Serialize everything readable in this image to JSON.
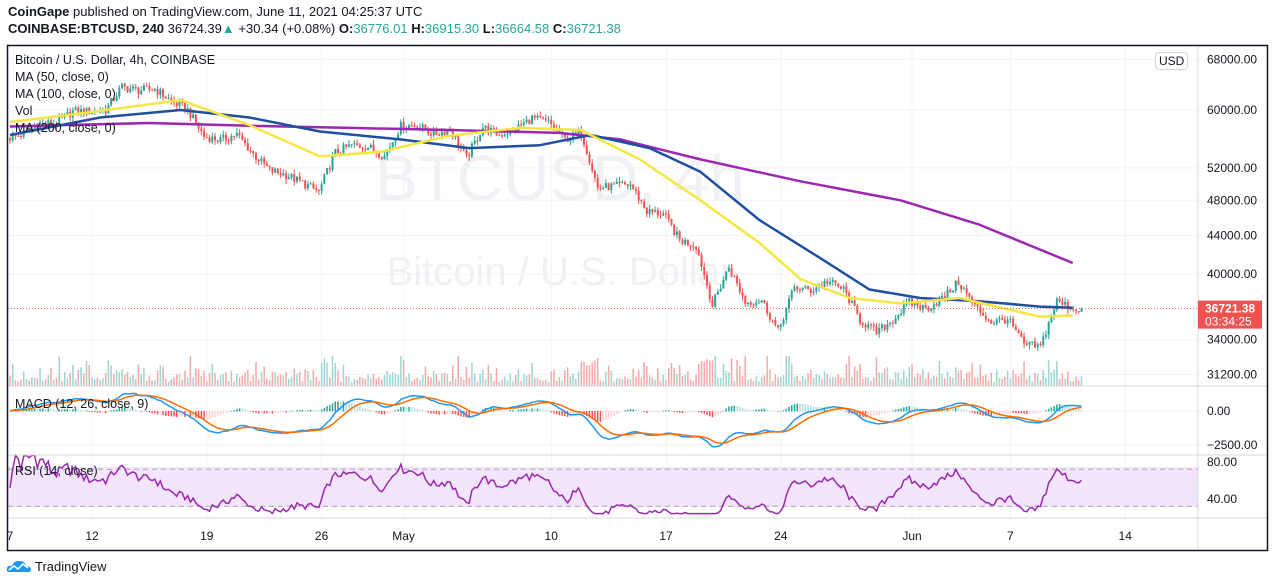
{
  "header": {
    "publisher": "CoinGape",
    "published_text": "published on TradingView.com, June 11, 2021 04:25:37 UTC",
    "symbol": "COINBASE:BTCUSD, 240",
    "last": "36724.39",
    "change": "+30.34 (+0.08%)",
    "o_label": "O:",
    "o": "36776.01",
    "h_label": "H:",
    "h": "36915.30",
    "l_label": "L:",
    "l": "36664.58",
    "c_label": "C:",
    "c": "36721.38"
  },
  "legend": {
    "title": "Bitcoin / U.S. Dollar, 4h, COINBASE",
    "ma50": "MA (50, close, 0)",
    "ma100": "MA (100, close, 0)",
    "vol": "Vol",
    "ma200": "MA (200, close, 0)",
    "macd": "MACD (12, 26, close, 9)",
    "rsi": "RSI (14, close)"
  },
  "watermark": {
    "symbol": "BTCUSD, 4h",
    "name": "Bitcoin / U.S. Dollar"
  },
  "currency_badge": "USD",
  "current_price": {
    "price": "36721.38",
    "countdown": "03:34:25"
  },
  "footer": {
    "brand": "TradingView"
  },
  "colors": {
    "up": "#26a69a",
    "down": "#ef5350",
    "ma50": "#f5e642",
    "ma100": "#1e4fa0",
    "ma200": "#9c27b0",
    "macd": "#2196f3",
    "signal": "#ff6d00",
    "rsi": "#9c27b0"
  },
  "chart_data": {
    "type": "candlestick",
    "interval": "4h",
    "start_date": "2021-04-07",
    "daily_close": [
      56500,
      58000,
      58100,
      59800,
      59800,
      60000,
      63500,
      63000,
      63200,
      61300,
      60000,
      56200,
      55700,
      56500,
      53800,
      51700,
      51100,
      50100,
      49000,
      54000,
      55000,
      54800,
      53500,
      57700,
      57800,
      56500,
      57200,
      53200,
      57500,
      56400,
      57300,
      58800,
      58200,
      55800,
      56700,
      49500,
      49700,
      49900,
      46700,
      46400,
      43500,
      42900,
      37000,
      40700,
      37300,
      37500,
      34700,
      38700,
      38400,
      39300,
      38500,
      35700,
      34600,
      35700,
      37300,
      36700,
      37600,
      39200,
      36900,
      35500,
      35800,
      33600,
      33400,
      37400,
      36700,
      36721.38
    ],
    "ma50": [
      [
        0,
        58250
      ],
      [
        5,
        59700
      ],
      [
        10.4,
        61500
      ],
      [
        14.6,
        57800
      ],
      [
        18.9,
        53500
      ],
      [
        22.6,
        54100
      ],
      [
        26.8,
        56300
      ],
      [
        31.1,
        57400
      ],
      [
        34.8,
        57100
      ],
      [
        38.4,
        53100
      ],
      [
        42.1,
        48000
      ],
      [
        45.7,
        43200
      ],
      [
        48.2,
        39500
      ],
      [
        51.2,
        37700
      ],
      [
        54.3,
        37200
      ],
      [
        57.9,
        37700
      ],
      [
        61,
        36600
      ],
      [
        62.8,
        36000
      ],
      [
        64.8,
        36100
      ]
    ],
    "ma100": [
      [
        0,
        56400
      ],
      [
        5.5,
        58900
      ],
      [
        10.4,
        60000
      ],
      [
        14.6,
        58900
      ],
      [
        18.9,
        56900
      ],
      [
        23.8,
        55800
      ],
      [
        28,
        54600
      ],
      [
        32.3,
        55000
      ],
      [
        35.4,
        56400
      ],
      [
        39,
        54600
      ],
      [
        42.1,
        51500
      ],
      [
        45.7,
        45700
      ],
      [
        49.4,
        41600
      ],
      [
        52.4,
        38500
      ],
      [
        55.5,
        37700
      ],
      [
        59.1,
        37400
      ],
      [
        62.8,
        36900
      ],
      [
        64.8,
        36800
      ]
    ],
    "ma200": [
      [
        0,
        57600
      ],
      [
        8.5,
        58100
      ],
      [
        14.6,
        57700
      ],
      [
        20.7,
        57400
      ],
      [
        26.8,
        57100
      ],
      [
        33.5,
        56700
      ],
      [
        37.2,
        55800
      ],
      [
        42.1,
        53100
      ],
      [
        48.2,
        50300
      ],
      [
        54.3,
        48000
      ],
      [
        59.1,
        45200
      ],
      [
        64.8,
        41100
      ]
    ],
    "price_axis": [
      "68000.00",
      "60000.00",
      "52000.00",
      "48000.00",
      "44000.00",
      "40000.00",
      "34000.00",
      "31200.00"
    ],
    "price_axis_values": [
      68000,
      60000,
      52000,
      48000,
      44000,
      40000,
      34000,
      31200
    ],
    "macd_axis": [
      "0.00",
      "−2500.00"
    ],
    "macd_axis_values": [
      0,
      -2500
    ],
    "rsi_axis": [
      "80.00",
      "40.00"
    ],
    "rsi_axis_values": [
      80,
      40
    ],
    "rsi_bands": [
      70,
      30
    ],
    "x_labels": [
      "7",
      "12",
      "19",
      "26",
      "May",
      "10",
      "17",
      "24",
      "Jun",
      "7",
      "14"
    ],
    "x_label_days": [
      0,
      5,
      12,
      19,
      24,
      33,
      40,
      47,
      55,
      61,
      68
    ]
  }
}
